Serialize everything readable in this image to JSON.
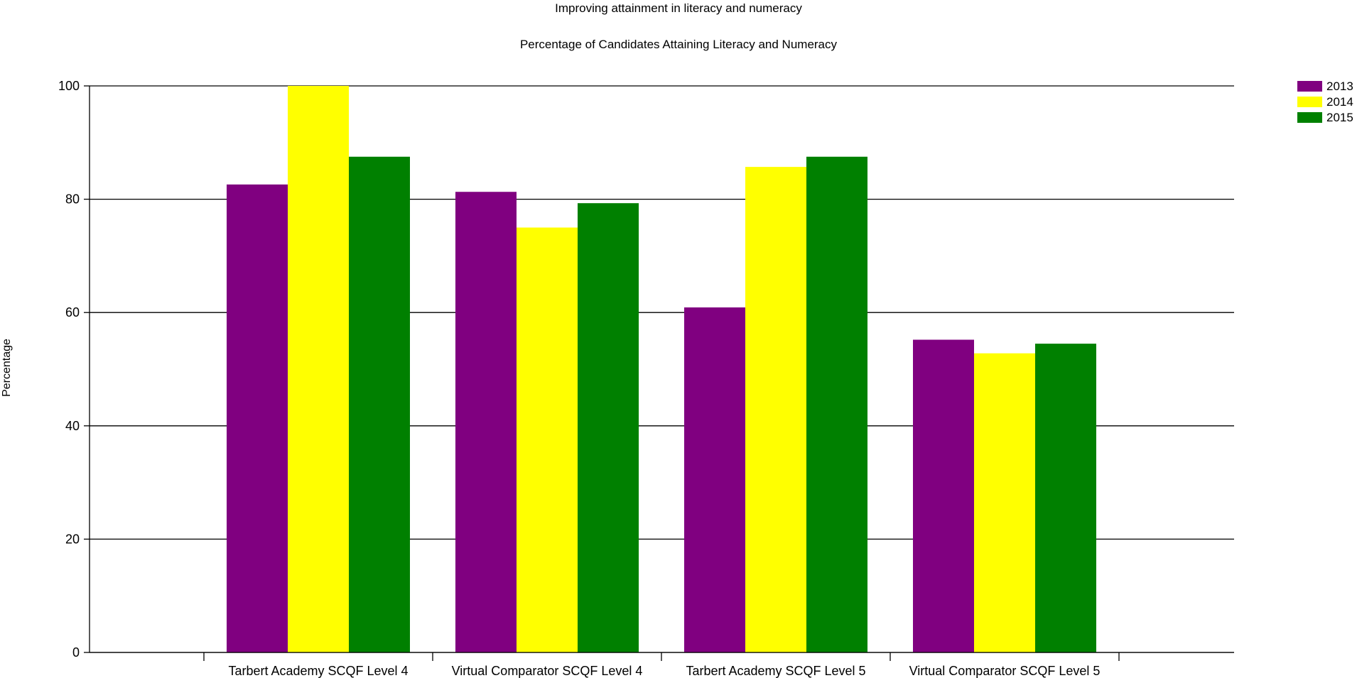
{
  "chart_data": {
    "type": "bar",
    "title": "Improving attainment in literacy and numeracy",
    "subtitle": "Percentage of Candidates Attaining Literacy and Numeracy",
    "xlabel": "",
    "ylabel": "Percentage",
    "ylim": [
      0,
      100
    ],
    "yticks": [
      0,
      20,
      40,
      60,
      80,
      100
    ],
    "grid": true,
    "legend_position": "top-right",
    "categories": [
      "Tarbert Academy SCQF Level 4",
      "Virtual Comparator SCQF Level 4",
      "Tarbert Academy SCQF Level 5",
      "Virtual Comparator SCQF Level 5"
    ],
    "series": [
      {
        "name": "2013",
        "color": "#800080",
        "values": [
          82.6,
          81.3,
          60.9,
          55.2
        ]
      },
      {
        "name": "2014",
        "color": "#ffff00",
        "values": [
          100,
          75.0,
          85.7,
          52.8
        ]
      },
      {
        "name": "2015",
        "color": "#008000",
        "values": [
          87.5,
          79.3,
          87.5,
          54.5
        ]
      }
    ]
  }
}
